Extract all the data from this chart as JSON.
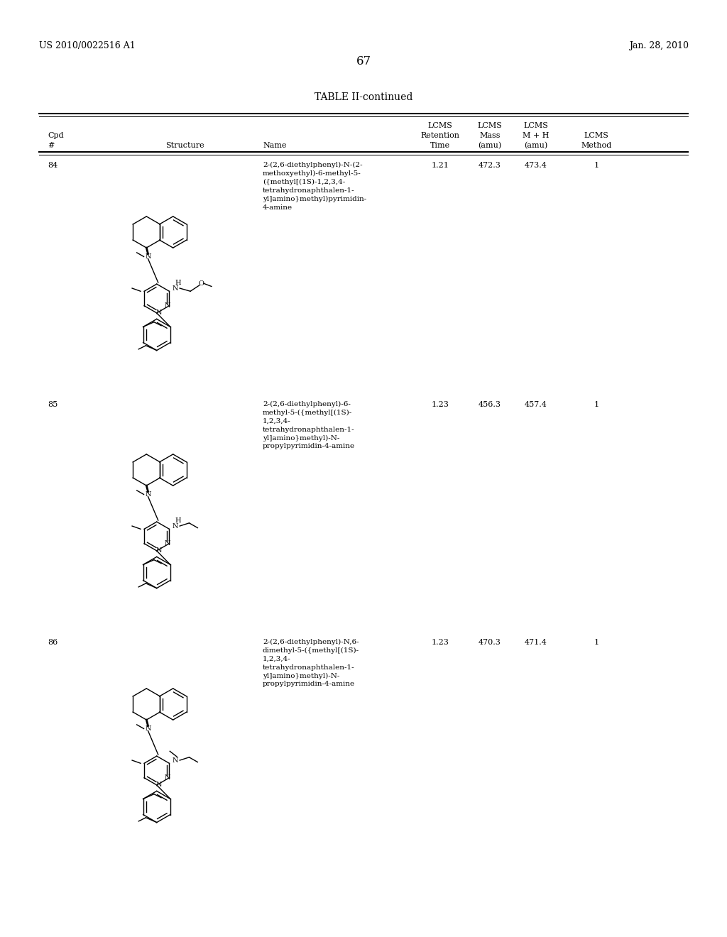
{
  "page_number": "67",
  "patent_number": "US 2010/0022516 A1",
  "patent_date": "Jan. 28, 2010",
  "table_title": "TABLE II-continued",
  "header_row1": [
    "",
    "",
    "",
    "LCMS",
    "LCMS",
    "LCMS",
    ""
  ],
  "header_row2": [
    "Cpd",
    "",
    "",
    "Retention",
    "Mass",
    "M + H",
    "LCMS"
  ],
  "header_row3": [
    "#",
    "Structure",
    "Name",
    "Time",
    "(amu)",
    "(amu)",
    "Method"
  ],
  "compounds": [
    {
      "cpd": "84",
      "name": "2-(2,6-diethylphenyl)-N-(2-\nmethoxyethyl)-6-methyl-5-\n({methyl[(1S)-1,2,3,4-\ntetrahydronaphthalen-1-\nyl]amino}methyl)pyrimidin-\n4-amine",
      "retention": "1.21",
      "mass": "472.3",
      "mh": "473.4",
      "method": "1"
    },
    {
      "cpd": "85",
      "name": "2-(2,6-diethylphenyl)-6-\nmethyl-5-({methyl[(1S)-\n1,2,3,4-\ntetrahydronaphthalen-1-\nyl]amino}methyl)-N-\npropylpyrimidin-4-amine",
      "retention": "1.23",
      "mass": "456.3",
      "mh": "457.4",
      "method": "1"
    },
    {
      "cpd": "86",
      "name": "2-(2,6-diethylphenyl)-N,6-\ndimethyl-5-({methyl[(1S)-\n1,2,3,4-\ntetrahydronaphthalen-1-\nyl]amino}methyl)-N-\npropylpyrimidin-4-amine",
      "retention": "1.23",
      "mass": "470.3",
      "mh": "471.4",
      "method": "1"
    }
  ],
  "bg_color": "#ffffff",
  "text_color": "#000000",
  "font_family": "serif"
}
